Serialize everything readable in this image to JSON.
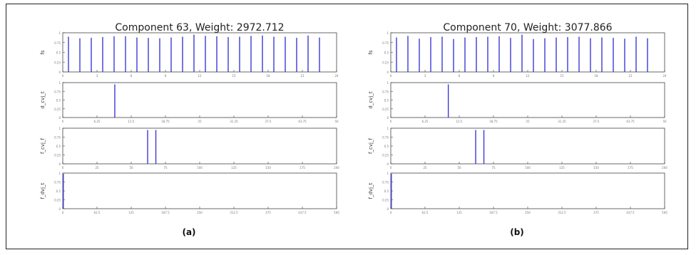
{
  "chart_data": [
    {
      "type": "bar",
      "title": "Component 63, Weight: 2972.712",
      "caption": "(a)",
      "subplots": [
        {
          "ylabel": "fs",
          "x": [
            0.5,
            1.5,
            2.5,
            3.5,
            4.5,
            5.5,
            6.5,
            7.5,
            8.5,
            9.5,
            10.5,
            11.5,
            12.5,
            13.5,
            14.5,
            15.5,
            16.5,
            17.5,
            18.5,
            19.5,
            20.5,
            21.5,
            22.5
          ],
          "values": [
            0.9,
            0.86,
            0.87,
            0.89,
            0.91,
            0.91,
            0.88,
            0.87,
            0.86,
            0.88,
            0.9,
            0.95,
            0.92,
            0.91,
            0.89,
            0.9,
            0.92,
            0.93,
            0.9,
            0.9,
            0.87,
            0.93,
            0.88
          ],
          "xlim": [
            0,
            24
          ],
          "ylim": [
            0,
            1
          ]
        },
        {
          "ylabel": "d_cvj_t",
          "x": [
            9.5
          ],
          "values": [
            0.95
          ],
          "xlim": [
            0,
            50
          ],
          "ylim": [
            0,
            1
          ]
        },
        {
          "ylabel": "f_cvj_f",
          "x": [
            62,
            68
          ],
          "values": [
            0.95,
            0.95
          ],
          "xlim": [
            0,
            200
          ],
          "ylim": [
            0,
            1
          ]
        },
        {
          "ylabel": "f_dvj_t",
          "x": [
            1
          ],
          "values": [
            0.98
          ],
          "xlim": [
            0,
            500
          ],
          "ylim": [
            0,
            1
          ]
        }
      ]
    },
    {
      "type": "bar",
      "title": "Component 70, Weight: 3077.866",
      "caption": "(b)",
      "subplots": [
        {
          "ylabel": "fs",
          "x": [
            0.5,
            1.5,
            2.5,
            3.5,
            4.5,
            5.5,
            6.5,
            7.5,
            8.5,
            9.5,
            10.5,
            11.5,
            12.5,
            13.5,
            14.5,
            15.5,
            16.5,
            17.5,
            18.5,
            19.5,
            20.5,
            21.5,
            22.5
          ],
          "values": [
            0.88,
            0.92,
            0.85,
            0.89,
            0.9,
            0.84,
            0.88,
            0.89,
            0.9,
            0.91,
            0.87,
            0.95,
            0.84,
            0.86,
            0.88,
            0.89,
            0.9,
            0.86,
            0.88,
            0.87,
            0.85,
            0.9,
            0.86
          ],
          "xlim": [
            0,
            24
          ],
          "ylim": [
            0,
            1
          ]
        },
        {
          "ylabel": "d_cvj_t",
          "x": [
            10.5
          ],
          "values": [
            0.95
          ],
          "xlim": [
            0,
            50
          ],
          "ylim": [
            0,
            1
          ]
        },
        {
          "ylabel": "f_cvj_f",
          "x": [
            62,
            68
          ],
          "values": [
            0.95,
            0.95
          ],
          "xlim": [
            0,
            200
          ],
          "ylim": [
            0,
            1
          ]
        },
        {
          "ylabel": "f_dvj_t",
          "x": [
            1
          ],
          "values": [
            0.98
          ],
          "xlim": [
            0,
            500
          ],
          "ylim": [
            0,
            1
          ]
        }
      ]
    }
  ],
  "colors": {
    "bar": "#3a3ad6",
    "axis": "#444444",
    "title": "#222222",
    "tick": "#777777"
  }
}
